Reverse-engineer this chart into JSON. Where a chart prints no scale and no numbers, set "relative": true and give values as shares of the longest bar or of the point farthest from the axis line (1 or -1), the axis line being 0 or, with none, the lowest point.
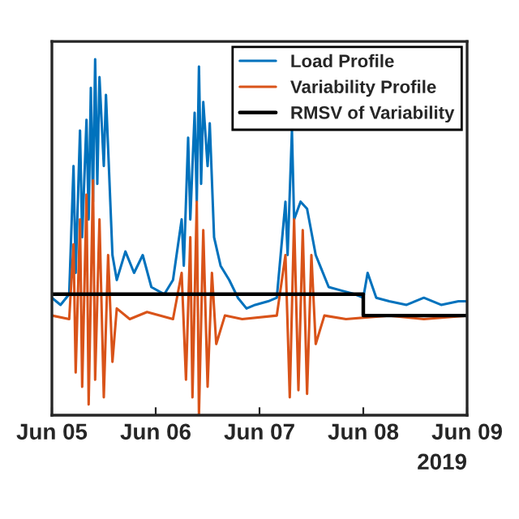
{
  "chart_data": {
    "type": "line",
    "relative": true,
    "xlabel": "2019",
    "legend": "top right",
    "xlim": [
      "2019-06-05T00:00",
      "2019-06-09T00:00"
    ],
    "xticks": [
      {
        "value": "2019-06-05",
        "label": "Jun 05"
      },
      {
        "value": "2019-06-06",
        "label": "Jun 06"
      },
      {
        "value": "2019-06-07",
        "label": "Jun 07"
      },
      {
        "value": "2019-06-08",
        "label": "Jun 08"
      },
      {
        "value": "2019-06-09",
        "label": "Jun 09"
      }
    ],
    "series": [
      {
        "name": "Load Profile",
        "color": "#0072bd",
        "x": [
          "2019-06-05T00:00",
          "2019-06-05T02:00",
          "2019-06-05T04:00",
          "2019-06-05T05:00",
          "2019-06-05T05:30",
          "2019-06-05T06:30",
          "2019-06-05T07:00",
          "2019-06-05T08:00",
          "2019-06-05T08:30",
          "2019-06-05T09:00",
          "2019-06-05T09:30",
          "2019-06-05T10:00",
          "2019-06-05T10:30",
          "2019-06-05T11:00",
          "2019-06-05T12:00",
          "2019-06-05T12:30",
          "2019-06-05T13:30",
          "2019-06-05T14:00",
          "2019-06-05T15:00",
          "2019-06-05T17:00",
          "2019-06-05T19:00",
          "2019-06-05T21:00",
          "2019-06-05T23:00",
          "2019-06-06T02:00",
          "2019-06-06T04:00",
          "2019-06-06T06:00",
          "2019-06-06T06:30",
          "2019-06-06T07:30",
          "2019-06-06T08:00",
          "2019-06-06T09:00",
          "2019-06-06T09:30",
          "2019-06-06T10:00",
          "2019-06-06T10:30",
          "2019-06-06T11:00",
          "2019-06-06T12:00",
          "2019-06-06T12:30",
          "2019-06-06T13:30",
          "2019-06-06T15:00",
          "2019-06-06T17:00",
          "2019-06-06T19:00",
          "2019-06-06T21:00",
          "2019-06-06T23:00",
          "2019-06-07T02:00",
          "2019-06-07T04:00",
          "2019-06-07T06:00",
          "2019-06-07T06:30",
          "2019-06-07T07:30",
          "2019-06-07T08:00",
          "2019-06-07T09:00",
          "2019-06-07T09:30",
          "2019-06-07T10:30",
          "2019-06-07T11:00",
          "2019-06-07T12:00",
          "2019-06-07T13:00",
          "2019-06-07T14:00",
          "2019-06-07T16:00",
          "2019-06-07T19:00",
          "2019-06-07T22:00",
          "2019-06-08T00:00",
          "2019-06-08T01:00",
          "2019-06-08T03:00",
          "2019-06-08T06:00",
          "2019-06-08T10:00",
          "2019-06-08T14:00",
          "2019-06-08T18:00",
          "2019-06-08T22:00",
          "2019-06-09T00:00"
        ],
        "values": [
          0.33,
          0.31,
          0.34,
          0.7,
          0.4,
          0.8,
          0.5,
          0.83,
          0.55,
          0.92,
          0.6,
          1.0,
          0.65,
          0.95,
          0.7,
          0.9,
          0.6,
          0.45,
          0.38,
          0.46,
          0.4,
          0.45,
          0.36,
          0.34,
          0.38,
          0.55,
          0.42,
          0.78,
          0.55,
          0.85,
          0.6,
          0.98,
          0.65,
          0.88,
          0.7,
          0.82,
          0.5,
          0.42,
          0.38,
          0.33,
          0.3,
          0.31,
          0.32,
          0.33,
          0.6,
          0.45,
          0.8,
          0.55,
          null,
          0.6,
          null,
          0.58,
          null,
          0.45,
          0.42,
          0.36,
          0.35,
          0.34,
          0.33,
          0.4,
          0.33,
          0.32,
          0.31,
          0.33,
          0.31,
          0.32,
          0.32
        ]
      },
      {
        "name": "Variability Profile",
        "color": "#d95319",
        "x": [
          "2019-06-05T00:00",
          "2019-06-05T04:00",
          "2019-06-05T05:00",
          "2019-06-05T05:30",
          "2019-06-05T06:30",
          "2019-06-05T07:00",
          "2019-06-05T08:00",
          "2019-06-05T08:30",
          "2019-06-05T09:30",
          "2019-06-05T10:00",
          "2019-06-05T11:00",
          "2019-06-05T12:00",
          "2019-06-05T13:00",
          "2019-06-05T14:00",
          "2019-06-05T15:00",
          "2019-06-05T18:00",
          "2019-06-05T22:00",
          "2019-06-06T04:00",
          "2019-06-06T06:00",
          "2019-06-06T07:00",
          "2019-06-06T08:00",
          "2019-06-06T08:30",
          "2019-06-06T09:30",
          "2019-06-06T10:00",
          "2019-06-06T11:00",
          "2019-06-06T12:00",
          "2019-06-06T13:00",
          "2019-06-06T14:00",
          "2019-06-06T16:00",
          "2019-06-06T20:00",
          "2019-06-07T04:00",
          "2019-06-07T06:00",
          "2019-06-07T07:00",
          "2019-06-07T08:00",
          "2019-06-07T09:00",
          "2019-06-07T10:00",
          "2019-06-07T11:00",
          "2019-06-07T12:00",
          "2019-06-07T13:00",
          "2019-06-07T15:00",
          "2019-06-07T20:00",
          "2019-06-08T06:00",
          "2019-06-08T14:00",
          "2019-06-09T00:00"
        ],
        "values": [
          0.28,
          0.27,
          0.48,
          0.12,
          0.55,
          0.08,
          0.62,
          0.03,
          0.66,
          0.1,
          0.55,
          0.05,
          0.45,
          0.15,
          0.3,
          0.27,
          0.29,
          0.27,
          0.4,
          0.1,
          0.5,
          0.05,
          0.6,
          0.0,
          0.52,
          0.08,
          0.4,
          0.2,
          0.28,
          0.27,
          0.28,
          0.45,
          0.05,
          0.55,
          0.07,
          0.52,
          0.06,
          0.45,
          0.2,
          0.28,
          0.27,
          0.28,
          0.27,
          0.28
        ]
      },
      {
        "name": "RMSV of Variability",
        "color": "#000000",
        "type": "step",
        "x": [
          "2019-06-05T00:00",
          "2019-06-08T00:00",
          "2019-06-09T00:00"
        ],
        "values": [
          0.34,
          0.28,
          0.28
        ]
      }
    ]
  }
}
